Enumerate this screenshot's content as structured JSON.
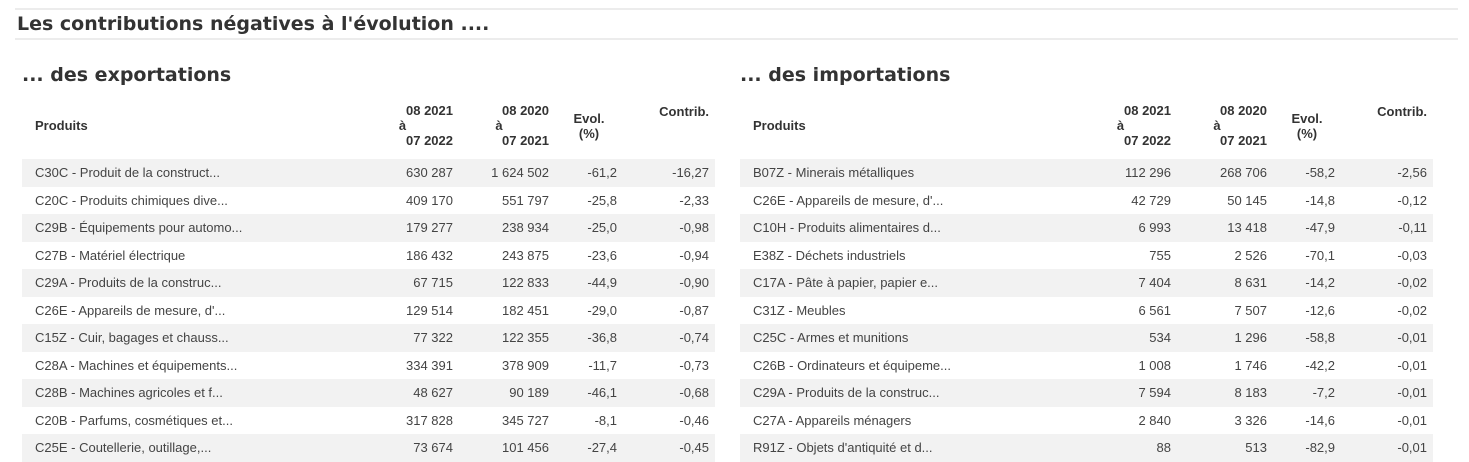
{
  "page": {
    "title": "Les contributions négatives à l'évolution ...."
  },
  "columns": {
    "produits": "Produits",
    "period1": [
      "08 2021",
      "à",
      "07 2022"
    ],
    "period2": [
      "08 2020",
      "à",
      "07 2021"
    ],
    "evol": [
      "Evol.",
      "(%)"
    ],
    "contrib": "Contrib."
  },
  "exportations": {
    "title": "... des exportations",
    "rows": [
      {
        "produit": "C30C - Produit de la construct...",
        "p1": "630 287",
        "p2": "1 624 502",
        "evol": "-61,2",
        "contrib": "-16,27"
      },
      {
        "produit": "C20C - Produits chimiques dive...",
        "p1": "409 170",
        "p2": "551 797",
        "evol": "-25,8",
        "contrib": "-2,33"
      },
      {
        "produit": "C29B - Équipements pour automo...",
        "p1": "179 277",
        "p2": "238 934",
        "evol": "-25,0",
        "contrib": "-0,98"
      },
      {
        "produit": "C27B - Matériel électrique",
        "p1": "186 432",
        "p2": "243 875",
        "evol": "-23,6",
        "contrib": "-0,94"
      },
      {
        "produit": "C29A - Produits de la construc...",
        "p1": "67 715",
        "p2": "122 833",
        "evol": "-44,9",
        "contrib": "-0,90"
      },
      {
        "produit": "C26E - Appareils de mesure, d'...",
        "p1": "129 514",
        "p2": "182 451",
        "evol": "-29,0",
        "contrib": "-0,87"
      },
      {
        "produit": "C15Z - Cuir, bagages et chauss...",
        "p1": "77 322",
        "p2": "122 355",
        "evol": "-36,8",
        "contrib": "-0,74"
      },
      {
        "produit": "C28A - Machines et équipements...",
        "p1": "334 391",
        "p2": "378 909",
        "evol": "-11,7",
        "contrib": "-0,73"
      },
      {
        "produit": "C28B - Machines agricoles et f...",
        "p1": "48 627",
        "p2": "90 189",
        "evol": "-46,1",
        "contrib": "-0,68"
      },
      {
        "produit": "C20B - Parfums, cosmétiques et...",
        "p1": "317 828",
        "p2": "345 727",
        "evol": "-8,1",
        "contrib": "-0,46"
      },
      {
        "produit": "C25E - Coutellerie, outillage,...",
        "p1": "73 674",
        "p2": "101 456",
        "evol": "-27,4",
        "contrib": "-0,45"
      }
    ]
  },
  "importations": {
    "title": "... des importations",
    "rows": [
      {
        "produit": "B07Z - Minerais métalliques",
        "p1": "112 296",
        "p2": "268 706",
        "evol": "-58,2",
        "contrib": "-2,56"
      },
      {
        "produit": "C26E - Appareils de mesure, d'...",
        "p1": "42 729",
        "p2": "50 145",
        "evol": "-14,8",
        "contrib": "-0,12"
      },
      {
        "produit": "C10H - Produits alimentaires d...",
        "p1": "6 993",
        "p2": "13 418",
        "evol": "-47,9",
        "contrib": "-0,11"
      },
      {
        "produit": "E38Z - Déchets industriels",
        "p1": "755",
        "p2": "2 526",
        "evol": "-70,1",
        "contrib": "-0,03"
      },
      {
        "produit": "C17A - Pâte à papier, papier e...",
        "p1": "7 404",
        "p2": "8 631",
        "evol": "-14,2",
        "contrib": "-0,02"
      },
      {
        "produit": "C31Z - Meubles",
        "p1": "6 561",
        "p2": "7 507",
        "evol": "-12,6",
        "contrib": "-0,02"
      },
      {
        "produit": "C25C - Armes et munitions",
        "p1": "534",
        "p2": "1 296",
        "evol": "-58,8",
        "contrib": "-0,01"
      },
      {
        "produit": "C26B - Ordinateurs et équipeme...",
        "p1": "1 008",
        "p2": "1 746",
        "evol": "-42,2",
        "contrib": "-0,01"
      },
      {
        "produit": "C29A - Produits de la construc...",
        "p1": "7 594",
        "p2": "8 183",
        "evol": "-7,2",
        "contrib": "-0,01"
      },
      {
        "produit": "C27A - Appareils ménagers",
        "p1": "2 840",
        "p2": "3 326",
        "evol": "-14,6",
        "contrib": "-0,01"
      },
      {
        "produit": "R91Z - Objets d'antiquité et d...",
        "p1": "88",
        "p2": "513",
        "evol": "-82,9",
        "contrib": "-0,01"
      }
    ]
  }
}
